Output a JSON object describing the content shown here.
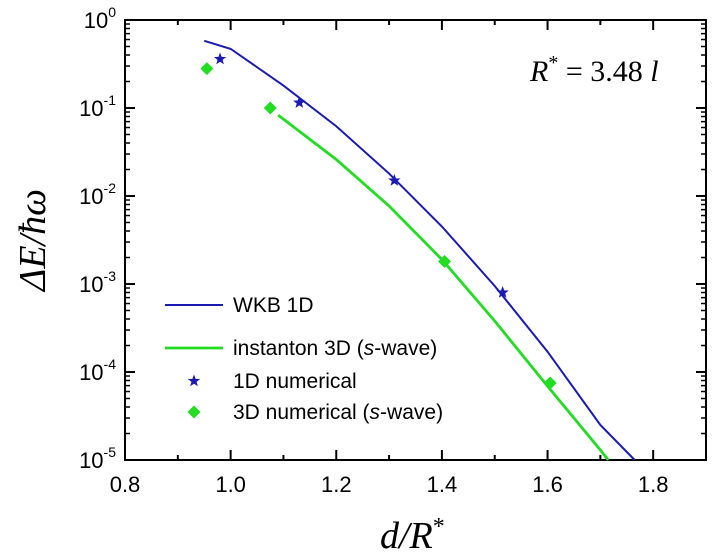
{
  "chart_data": {
    "type": "line",
    "xlabel": {
      "main": "d/R",
      "sup": "*"
    },
    "ylabel": "ΔE/ħω",
    "xlim": [
      0.8,
      1.9
    ],
    "ylim": [
      1e-05,
      1
    ],
    "y_scale": "log",
    "x_ticks": [
      "0.8",
      "1.0",
      "1.2",
      "1.4",
      "1.6",
      "1.8"
    ],
    "y_ticks": [
      {
        "base": "10",
        "exp": "0",
        "value": 1
      },
      {
        "base": "10",
        "exp": "-1",
        "value": 0.1
      },
      {
        "base": "10",
        "exp": "-2",
        "value": 0.01
      },
      {
        "base": "10",
        "exp": "-3",
        "value": 0.001
      },
      {
        "base": "10",
        "exp": "-4",
        "value": 0.0001
      },
      {
        "base": "10",
        "exp": "-5",
        "value": 1e-05
      }
    ],
    "annotation": {
      "lhs": "R",
      "sup": "*",
      "rhs": " = 3.48 l"
    },
    "legend_position": "bottom-left",
    "series": [
      {
        "name": "WKB 1D",
        "kind": "line",
        "color": "#1a1ab4",
        "x": [
          0.95,
          1.0,
          1.1,
          1.2,
          1.3,
          1.4,
          1.5,
          1.6,
          1.7,
          1.765
        ],
        "y": [
          0.58,
          0.47,
          0.18,
          0.062,
          0.018,
          0.0045,
          0.00095,
          0.00017,
          2.5e-05,
          1e-05
        ]
      },
      {
        "name": "instanton 3D (s-wave)",
        "kind": "line",
        "color": "#22dd22",
        "x": [
          1.09,
          1.2,
          1.3,
          1.4,
          1.5,
          1.6,
          1.7,
          1.715
        ],
        "y": [
          0.083,
          0.026,
          0.0077,
          0.0019,
          0.00038,
          6.9e-05,
          1.3e-05,
          1e-05
        ]
      },
      {
        "name": "1D numerical",
        "kind": "star",
        "color": "#1a1ab4",
        "x": [
          0.98,
          1.13,
          1.31,
          1.515
        ],
        "y": [
          0.36,
          0.115,
          0.015,
          0.0008
        ]
      },
      {
        "name": "3D numerical (s-wave)",
        "kind": "diamond",
        "color": "#22dd22",
        "x": [
          0.955,
          1.075,
          1.405,
          1.605
        ],
        "y": [
          0.28,
          0.1,
          0.0018,
          7.5e-05
        ]
      }
    ]
  }
}
